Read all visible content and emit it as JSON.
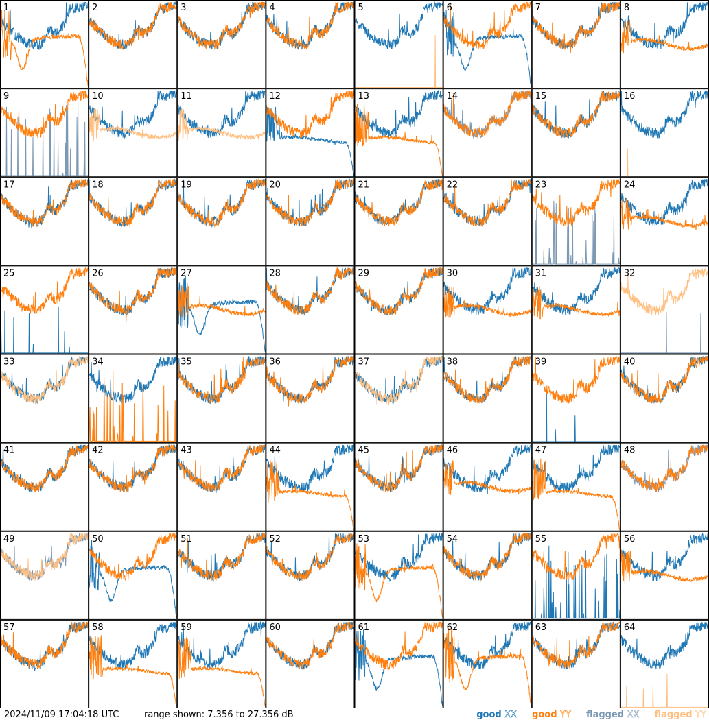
{
  "footer": {
    "timestamp": "2024/11/09 17:04:18 UTC",
    "range_label": "range shown: 7.356 to 27.356 dB"
  },
  "legend": [
    {
      "word": "good",
      "pol": "XX",
      "color": "#1f77b4"
    },
    {
      "word": "good",
      "pol": "YY",
      "color": "#ff7f0e"
    },
    {
      "word": "flagged",
      "pol": "XX",
      "color": "#7c98b3"
    },
    {
      "word": "flagged",
      "pol": "YY",
      "color": "#ffbf80"
    }
  ],
  "colors": {
    "good_xx": "#1f77b4",
    "good_yy": "#ff7f0e",
    "flagged_xx": "#7c98b3",
    "flagged_yy": "#ffbf80",
    "grid": "#000000"
  },
  "chart_data": {
    "type": "line",
    "layout": "small-multiples 8x8",
    "y_range_db": [
      7.356,
      27.356
    ],
    "panels": [
      {
        "id": "1",
        "xx": "good",
        "yy": "good",
        "xx_shape": "normal",
        "yy_shape": "dip-rolloff"
      },
      {
        "id": "2",
        "xx": "good",
        "yy": "good",
        "xx_shape": "normal",
        "yy_shape": "normal"
      },
      {
        "id": "3",
        "xx": "good",
        "yy": "good",
        "xx_shape": "normal",
        "yy_shape": "normal"
      },
      {
        "id": "4",
        "xx": "good",
        "yy": "good",
        "xx_shape": "normal",
        "yy_shape": "normal"
      },
      {
        "id": "5",
        "xx": "good",
        "yy": "flagged",
        "xx_shape": "normal",
        "yy_shape": "flat-low"
      },
      {
        "id": "6",
        "xx": "good",
        "yy": "good",
        "xx_shape": "dip-rolloff",
        "yy_shape": "normal"
      },
      {
        "id": "7",
        "xx": "good",
        "yy": "good",
        "xx_shape": "normal",
        "yy_shape": "normal"
      },
      {
        "id": "8",
        "xx": "good",
        "yy": "good",
        "xx_shape": "normal",
        "yy_shape": "flat"
      },
      {
        "id": "9",
        "xx": "flagged",
        "yy": "good",
        "xx_shape": "spiky-low",
        "yy_shape": "normal"
      },
      {
        "id": "10",
        "xx": "good",
        "yy": "flagged",
        "xx_shape": "normal",
        "yy_shape": "flat"
      },
      {
        "id": "11",
        "xx": "good",
        "yy": "flagged",
        "xx_shape": "normal",
        "yy_shape": "flat"
      },
      {
        "id": "12",
        "xx": "good",
        "yy": "good",
        "xx_shape": "flat-rolloff",
        "yy_shape": "normal"
      },
      {
        "id": "13",
        "xx": "good",
        "yy": "good",
        "xx_shape": "normal",
        "yy_shape": "flat-rolloff"
      },
      {
        "id": "14",
        "xx": "flagged",
        "yy": "good",
        "xx_shape": "normal",
        "yy_shape": "normal"
      },
      {
        "id": "15",
        "xx": "good",
        "yy": "good",
        "xx_shape": "normal",
        "yy_shape": "normal"
      },
      {
        "id": "16",
        "xx": "good",
        "yy": "flagged",
        "xx_shape": "normal",
        "yy_shape": "flat-low"
      },
      {
        "id": "17",
        "xx": "good",
        "yy": "good",
        "xx_shape": "normal",
        "yy_shape": "normal"
      },
      {
        "id": "18",
        "xx": "good",
        "yy": "good",
        "xx_shape": "normal",
        "yy_shape": "normal"
      },
      {
        "id": "19",
        "xx": "good",
        "yy": "good",
        "xx_shape": "normal",
        "yy_shape": "normal"
      },
      {
        "id": "20",
        "xx": "good",
        "yy": "good",
        "xx_shape": "normal",
        "yy_shape": "normal"
      },
      {
        "id": "21",
        "xx": "good",
        "yy": "good",
        "xx_shape": "normal",
        "yy_shape": "normal"
      },
      {
        "id": "22",
        "xx": "good",
        "yy": "good",
        "xx_shape": "normal",
        "yy_shape": "normal"
      },
      {
        "id": "23",
        "xx": "flagged",
        "yy": "good",
        "xx_shape": "spiky-low",
        "yy_shape": "normal"
      },
      {
        "id": "24",
        "xx": "good",
        "yy": "good",
        "xx_shape": "normal",
        "yy_shape": "flat"
      },
      {
        "id": "25",
        "xx": "good",
        "yy": "good",
        "xx_shape": "flat-low",
        "yy_shape": "normal"
      },
      {
        "id": "26",
        "xx": "good",
        "yy": "good",
        "xx_shape": "normal",
        "yy_shape": "normal"
      },
      {
        "id": "27",
        "xx": "good",
        "yy": "good",
        "xx_shape": "dip-rolloff",
        "yy_shape": "flat"
      },
      {
        "id": "28",
        "xx": "good",
        "yy": "good",
        "xx_shape": "normal",
        "yy_shape": "normal"
      },
      {
        "id": "29",
        "xx": "good",
        "yy": "good",
        "xx_shape": "normal",
        "yy_shape": "normal"
      },
      {
        "id": "30",
        "xx": "good",
        "yy": "good",
        "xx_shape": "normal",
        "yy_shape": "flat"
      },
      {
        "id": "31",
        "xx": "good",
        "yy": "good",
        "xx_shape": "normal",
        "yy_shape": "flat"
      },
      {
        "id": "32",
        "xx": "flagged",
        "yy": "flagged",
        "xx_shape": "flat-low",
        "yy_shape": "normal"
      },
      {
        "id": "33",
        "xx": "good",
        "yy": "flagged",
        "xx_shape": "normal",
        "yy_shape": "normal"
      },
      {
        "id": "34",
        "xx": "good",
        "yy": "good",
        "xx_shape": "normal",
        "yy_shape": "spiky-low"
      },
      {
        "id": "35",
        "xx": "good",
        "yy": "good",
        "xx_shape": "normal",
        "yy_shape": "normal"
      },
      {
        "id": "36",
        "xx": "good",
        "yy": "good",
        "xx_shape": "normal",
        "yy_shape": "normal"
      },
      {
        "id": "37",
        "xx": "good",
        "yy": "flagged",
        "xx_shape": "normal",
        "yy_shape": "normal"
      },
      {
        "id": "38",
        "xx": "good",
        "yy": "good",
        "xx_shape": "normal",
        "yy_shape": "normal"
      },
      {
        "id": "39",
        "xx": "good",
        "yy": "good",
        "xx_shape": "flat-low",
        "yy_shape": "normal"
      },
      {
        "id": "40",
        "xx": "good",
        "yy": "good",
        "xx_shape": "normal",
        "yy_shape": "normal"
      },
      {
        "id": "41",
        "xx": "good",
        "yy": "good",
        "xx_shape": "normal",
        "yy_shape": "normal"
      },
      {
        "id": "42",
        "xx": "good",
        "yy": "good",
        "xx_shape": "normal",
        "yy_shape": "normal"
      },
      {
        "id": "43",
        "xx": "good",
        "yy": "good",
        "xx_shape": "normal",
        "yy_shape": "normal"
      },
      {
        "id": "44",
        "xx": "good",
        "yy": "good",
        "xx_shape": "normal",
        "yy_shape": "flat-rolloff"
      },
      {
        "id": "45",
        "xx": "good",
        "yy": "good",
        "xx_shape": "normal",
        "yy_shape": "normal"
      },
      {
        "id": "46",
        "xx": "good",
        "yy": "good",
        "xx_shape": "normal",
        "yy_shape": "flat"
      },
      {
        "id": "47",
        "xx": "good",
        "yy": "good",
        "xx_shape": "normal",
        "yy_shape": "flat-rolloff"
      },
      {
        "id": "48",
        "xx": "flagged",
        "yy": "good",
        "xx_shape": "normal",
        "yy_shape": "normal"
      },
      {
        "id": "49",
        "xx": "flagged",
        "yy": "flagged",
        "xx_shape": "normal",
        "yy_shape": "normal"
      },
      {
        "id": "50",
        "xx": "good",
        "yy": "good",
        "xx_shape": "dip-rolloff",
        "yy_shape": "normal"
      },
      {
        "id": "51",
        "xx": "good",
        "yy": "good",
        "xx_shape": "normal",
        "yy_shape": "normal"
      },
      {
        "id": "52",
        "xx": "good",
        "yy": "good",
        "xx_shape": "normal",
        "yy_shape": "normal"
      },
      {
        "id": "53",
        "xx": "good",
        "yy": "good",
        "xx_shape": "normal",
        "yy_shape": "dip-rolloff"
      },
      {
        "id": "54",
        "xx": "good",
        "yy": "good",
        "xx_shape": "normal",
        "yy_shape": "normal"
      },
      {
        "id": "55",
        "xx": "good",
        "yy": "good",
        "xx_shape": "spiky-low",
        "yy_shape": "normal"
      },
      {
        "id": "56",
        "xx": "good",
        "yy": "good",
        "xx_shape": "normal",
        "yy_shape": "flat"
      },
      {
        "id": "57",
        "xx": "good",
        "yy": "good",
        "xx_shape": "normal",
        "yy_shape": "normal"
      },
      {
        "id": "58",
        "xx": "good",
        "yy": "good",
        "xx_shape": "normal",
        "yy_shape": "flat-rolloff"
      },
      {
        "id": "59",
        "xx": "good",
        "yy": "good",
        "xx_shape": "normal",
        "yy_shape": "flat-rolloff"
      },
      {
        "id": "60",
        "xx": "good",
        "yy": "good",
        "xx_shape": "normal",
        "yy_shape": "normal"
      },
      {
        "id": "61",
        "xx": "good",
        "yy": "good",
        "xx_shape": "dip-rolloff",
        "yy_shape": "normal"
      },
      {
        "id": "62",
        "xx": "good",
        "yy": "good",
        "xx_shape": "normal",
        "yy_shape": "dip-rolloff"
      },
      {
        "id": "63",
        "xx": "good",
        "yy": "good",
        "xx_shape": "normal",
        "yy_shape": "normal"
      },
      {
        "id": "64",
        "xx": "good",
        "yy": "flagged",
        "xx_shape": "normal",
        "yy_shape": "flat-low"
      }
    ]
  }
}
